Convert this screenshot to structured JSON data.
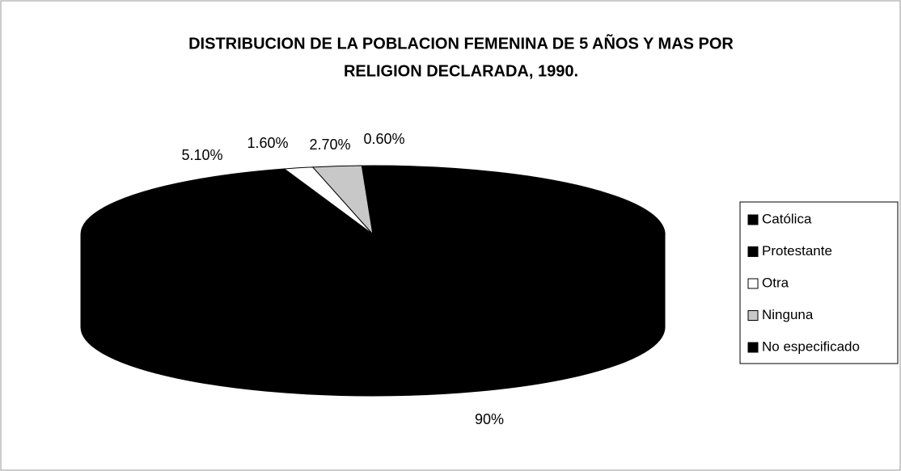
{
  "chart_data": {
    "type": "pie",
    "three_d": true,
    "title": [
      "DISTRIBUCION DE LA POBLACION FEMENINA DE 5 AÑOS Y MAS POR",
      "RELIGION DECLARADA, 1990."
    ],
    "categories": [
      "Católica",
      "Protestante",
      "Otra",
      "Ninguna",
      "No especificado"
    ],
    "values": [
      90,
      5.1,
      1.6,
      2.7,
      0.6
    ],
    "value_labels": [
      "90%",
      "5.10%",
      "1.60%",
      "2.70%",
      "0.60%"
    ],
    "colors": [
      "#000000",
      "#000000",
      "#ffffff",
      "#c8c8c8",
      "#000000"
    ],
    "legend": "right"
  }
}
